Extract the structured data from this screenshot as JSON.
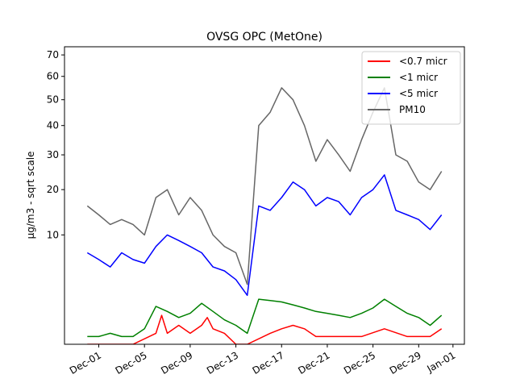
{
  "chart_data": {
    "type": "line",
    "title": "OVSG OPC (MetOne)",
    "xlabel": "",
    "ylabel": "µg/m3 - sqrt scale",
    "y_scale": "sqrt",
    "ylim": [
      0,
      74
    ],
    "xlim": [
      "2023-11-28",
      "2024-01-02"
    ],
    "y_ticks": [
      10,
      20,
      30,
      40,
      50,
      60,
      70
    ],
    "x_ticks": [
      {
        "date": "2023-12-01",
        "label": "Dec-01"
      },
      {
        "date": "2023-12-05",
        "label": "Dec-05"
      },
      {
        "date": "2023-12-09",
        "label": "Dec-09"
      },
      {
        "date": "2023-12-13",
        "label": "Dec-13"
      },
      {
        "date": "2023-12-17",
        "label": "Dec-17"
      },
      {
        "date": "2023-12-21",
        "label": "Dec-21"
      },
      {
        "date": "2023-12-25",
        "label": "Dec-25"
      },
      {
        "date": "2023-12-29",
        "label": "Dec-29"
      },
      {
        "date": "2024-01-01",
        "label": "Jan-01"
      }
    ],
    "legend_position": "top-right",
    "series": [
      {
        "name": "<0.7 micr",
        "color": "#ff0000",
        "x": [
          "2023-11-30",
          "2023-12-02",
          "2023-12-04",
          "2023-12-06",
          "2023-12-06T12:00",
          "2023-12-07",
          "2023-12-08",
          "2023-12-09",
          "2023-12-10",
          "2023-12-10T12:00",
          "2023-12-11",
          "2023-12-12",
          "2023-12-13",
          "2023-12-14",
          "2023-12-16",
          "2023-12-17",
          "2023-12-18",
          "2023-12-19",
          "2023-12-20",
          "2023-12-24",
          "2023-12-26",
          "2023-12-28",
          "2023-12-30",
          "2023-12-31"
        ],
        "values": [
          0,
          0,
          0,
          0.1,
          0.7,
          0.1,
          0.3,
          0.1,
          0.3,
          0.6,
          0.2,
          0.1,
          0,
          0,
          0.1,
          0.2,
          0.3,
          0.2,
          0.05,
          0.05,
          0.2,
          0.05,
          0.05,
          0.2
        ]
      },
      {
        "name": "<1 micr",
        "color": "#008000",
        "x": [
          "2023-11-30",
          "2023-12-01",
          "2023-12-02",
          "2023-12-03",
          "2023-12-04",
          "2023-12-05",
          "2023-12-06",
          "2023-12-07",
          "2023-12-08",
          "2023-12-09",
          "2023-12-10",
          "2023-12-11",
          "2023-12-12",
          "2023-12-13",
          "2023-12-14",
          "2023-12-15",
          "2023-12-16",
          "2023-12-17",
          "2023-12-18",
          "2023-12-19",
          "2023-12-20",
          "2023-12-21",
          "2023-12-22",
          "2023-12-23",
          "2023-12-24",
          "2023-12-25",
          "2023-12-26",
          "2023-12-27",
          "2023-12-28",
          "2023-12-29",
          "2023-12-30",
          "2023-12-31"
        ],
        "values": [
          0.05,
          0.05,
          0.1,
          0.05,
          0.05,
          0.2,
          1.2,
          0.9,
          0.6,
          0.8,
          1.4,
          0.9,
          0.5,
          0.3,
          0.1,
          1.7,
          1.6,
          1.5,
          1.3,
          1.1,
          0.9,
          0.8,
          0.7,
          0.6,
          0.8,
          1.1,
          1.7,
          1.2,
          0.8,
          0.6,
          0.3,
          0.7
        ]
      },
      {
        "name": "<5 micr",
        "color": "#0000ff",
        "x": [
          "2023-11-30",
          "2023-12-01",
          "2023-12-02",
          "2023-12-03",
          "2023-12-04",
          "2023-12-05",
          "2023-12-06",
          "2023-12-07",
          "2023-12-08",
          "2023-12-09",
          "2023-12-10",
          "2023-12-11",
          "2023-12-12",
          "2023-12-13",
          "2023-12-14",
          "2023-12-15",
          "2023-12-16",
          "2023-12-17",
          "2023-12-18",
          "2023-12-19",
          "2023-12-20",
          "2023-12-21",
          "2023-12-22",
          "2023-12-23",
          "2023-12-24",
          "2023-12-25",
          "2023-12-26",
          "2023-12-27",
          "2023-12-28",
          "2023-12-29",
          "2023-12-30",
          "2023-12-31"
        ],
        "values": [
          7,
          6,
          5,
          7,
          6,
          5.5,
          8,
          10,
          9,
          8,
          7,
          5,
          4.5,
          3.5,
          2,
          16,
          15,
          18,
          22,
          20,
          16,
          18,
          17,
          14,
          18,
          20,
          24,
          15,
          14,
          13,
          11,
          14
        ]
      },
      {
        "name": "PM10",
        "color": "#666666",
        "x": [
          "2023-11-30",
          "2023-12-01",
          "2023-12-02",
          "2023-12-03",
          "2023-12-04",
          "2023-12-05",
          "2023-12-06",
          "2023-12-07",
          "2023-12-08",
          "2023-12-09",
          "2023-12-10",
          "2023-12-11",
          "2023-12-12",
          "2023-12-13",
          "2023-12-14",
          "2023-12-15",
          "2023-12-16",
          "2023-12-17",
          "2023-12-18",
          "2023-12-19",
          "2023-12-20",
          "2023-12-21",
          "2023-12-22",
          "2023-12-23",
          "2023-12-24",
          "2023-12-25",
          "2023-12-26",
          "2023-12-27",
          "2023-12-28",
          "2023-12-29",
          "2023-12-30",
          "2023-12-31"
        ],
        "values": [
          16,
          14,
          12,
          13,
          12,
          10,
          18,
          20,
          14,
          18,
          15,
          10,
          8,
          7,
          3,
          40,
          45,
          55,
          50,
          40,
          28,
          35,
          30,
          25,
          35,
          45,
          55,
          30,
          28,
          22,
          20,
          25
        ]
      }
    ]
  }
}
